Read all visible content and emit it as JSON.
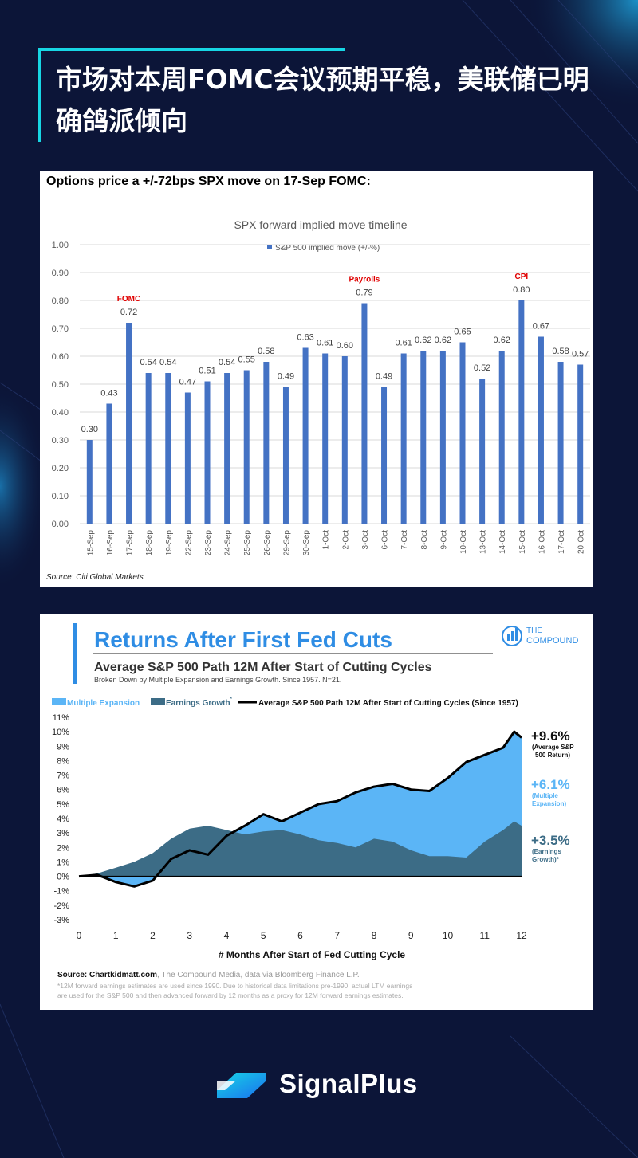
{
  "header": {
    "title": "市场对本周FOMC会议预期平稳，美联储已明确鸽派倾向"
  },
  "colors": {
    "background": "#0c1538",
    "accent": "#17d6e4",
    "bar_blue": "#4472c4",
    "event_red": "#e00000",
    "light_blue": "#5bb5f6",
    "dark_teal": "#3c6c86"
  },
  "chart_data": [
    {
      "type": "bar",
      "heading": "Options price a +/-72bps SPX move on 17-Sep FOMC",
      "heading_suffix": ":",
      "title": "SPX forward implied move timeline",
      "legend": "S&P 500 implied move (+/-%)",
      "source": "Source: Citi Global Markets",
      "ylim": [
        0,
        1.0
      ],
      "yticks": [
        "1.00",
        "0.90",
        "0.80",
        "0.70",
        "0.60",
        "0.50",
        "0.40",
        "0.30",
        "0.20",
        "0.10",
        "0.00"
      ],
      "categories": [
        "15-Sep",
        "16-Sep",
        "17-Sep",
        "18-Sep",
        "19-Sep",
        "22-Sep",
        "23-Sep",
        "24-Sep",
        "25-Sep",
        "26-Sep",
        "29-Sep",
        "30-Sep",
        "1-Oct",
        "2-Oct",
        "3-Oct",
        "6-Oct",
        "7-Oct",
        "8-Oct",
        "9-Oct",
        "10-Oct",
        "13-Oct",
        "14-Oct",
        "15-Oct",
        "16-Oct",
        "17-Oct",
        "20-Oct"
      ],
      "values": [
        0.3,
        0.43,
        0.72,
        0.54,
        0.54,
        0.47,
        0.51,
        0.54,
        0.55,
        0.58,
        0.49,
        0.63,
        0.61,
        0.6,
        0.79,
        0.49,
        0.61,
        0.62,
        0.62,
        0.65,
        0.52,
        0.62,
        0.8,
        0.67,
        0.58,
        0.57
      ],
      "labels": [
        "0.30",
        "0.43",
        "0.72",
        "0.54",
        "0.54",
        "0.47",
        "0.51",
        "0.54",
        "0.55",
        "0.58",
        "0.49",
        "0.63",
        "0.61",
        "0.60",
        "0.79",
        "0.49",
        "0.61",
        "0.62",
        "0.62",
        "0.65",
        "0.52",
        "0.62",
        "0.80",
        "0.67",
        "0.58",
        "0.57"
      ],
      "annotations": [
        {
          "text": "FOMC",
          "category": "17-Sep"
        },
        {
          "text": "Payrolls",
          "category": "3-Oct"
        },
        {
          "text": "CPI",
          "category": "15-Oct"
        }
      ]
    },
    {
      "type": "area",
      "title": "Returns After First Fed Cuts",
      "subtitle": "Average S&P 500 Path 12M After Start of Cutting Cycles",
      "subsubtitle": "Broken Down by Multiple Expansion and Earnings Growth. Since 1957. N=21.",
      "brand_line1": "THE",
      "brand_line2": "COMPOUND",
      "legend": [
        "Multiple Expansion",
        "Earnings Growth",
        "Average S&P 500 Path 12M After Start of Cutting Cycles (Since 1957)"
      ],
      "legend_star": "*",
      "xlabel": "# Months After Start of Fed Cutting Cycle",
      "xlim": [
        0,
        12
      ],
      "ylim": [
        -3,
        11
      ],
      "xticks": [
        "0",
        "1",
        "2",
        "3",
        "4",
        "5",
        "6",
        "7",
        "8",
        "9",
        "10",
        "11",
        "12"
      ],
      "yticks": [
        "11%",
        "10%",
        "9%",
        "8%",
        "7%",
        "6%",
        "5%",
        "4%",
        "3%",
        "2%",
        "1%",
        "0%",
        "-1%",
        "-2%",
        "-3%"
      ],
      "total_path": {
        "x": [
          0,
          0.5,
          1,
          1.5,
          2,
          2.5,
          3,
          3.5,
          4,
          4.5,
          5,
          5.5,
          6,
          6.5,
          7,
          7.5,
          8,
          8.5,
          9,
          9.5,
          10,
          10.5,
          11,
          11.5,
          11.8,
          12
        ],
        "y": [
          0,
          0.1,
          -0.4,
          -0.7,
          -0.3,
          1.2,
          1.8,
          1.5,
          2.8,
          3.5,
          4.3,
          3.8,
          4.4,
          5.0,
          5.2,
          5.8,
          6.2,
          6.4,
          6.0,
          5.9,
          6.8,
          7.9,
          8.4,
          8.9,
          10.0,
          9.6
        ]
      },
      "earnings_path": {
        "x": [
          0,
          0.5,
          1,
          1.5,
          2,
          2.5,
          3,
          3.5,
          4,
          4.5,
          5,
          5.5,
          6,
          6.5,
          7,
          7.5,
          8,
          8.5,
          9,
          9.5,
          10,
          10.5,
          11,
          11.5,
          11.8,
          12
        ],
        "y": [
          0,
          0.2,
          0.6,
          1.0,
          1.6,
          2.6,
          3.3,
          3.5,
          3.2,
          2.9,
          3.1,
          3.2,
          2.9,
          2.5,
          2.3,
          2.0,
          2.6,
          2.4,
          1.8,
          1.4,
          1.4,
          1.3,
          2.4,
          3.2,
          3.8,
          3.5
        ]
      },
      "annotations": [
        {
          "value": "+9.6%",
          "label_line1": "(Average S&P",
          "label_line2": "500 Return)"
        },
        {
          "value": "+6.1%",
          "label_line1": "(Multiple",
          "label_line2": "Expansion)"
        },
        {
          "value": "+3.5%",
          "label_line1": "(Earnings",
          "label_line2": "Growth)*"
        }
      ],
      "source_bold": "Source: Chartkidmatt.com",
      "source_rest": ", The Compound Media, data via Bloomberg Finance L.P.",
      "footnote_line1": "*12M forward earnings estimates are used since 1990. Due to historical data limitations pre-1990, actual LTM earnings",
      "footnote_line2": "are used for the S&P 500 and then advanced forward by 12 months as a proxy for 12M forward earnings estimates."
    }
  ],
  "footer": {
    "brand": "SignalPlus"
  }
}
